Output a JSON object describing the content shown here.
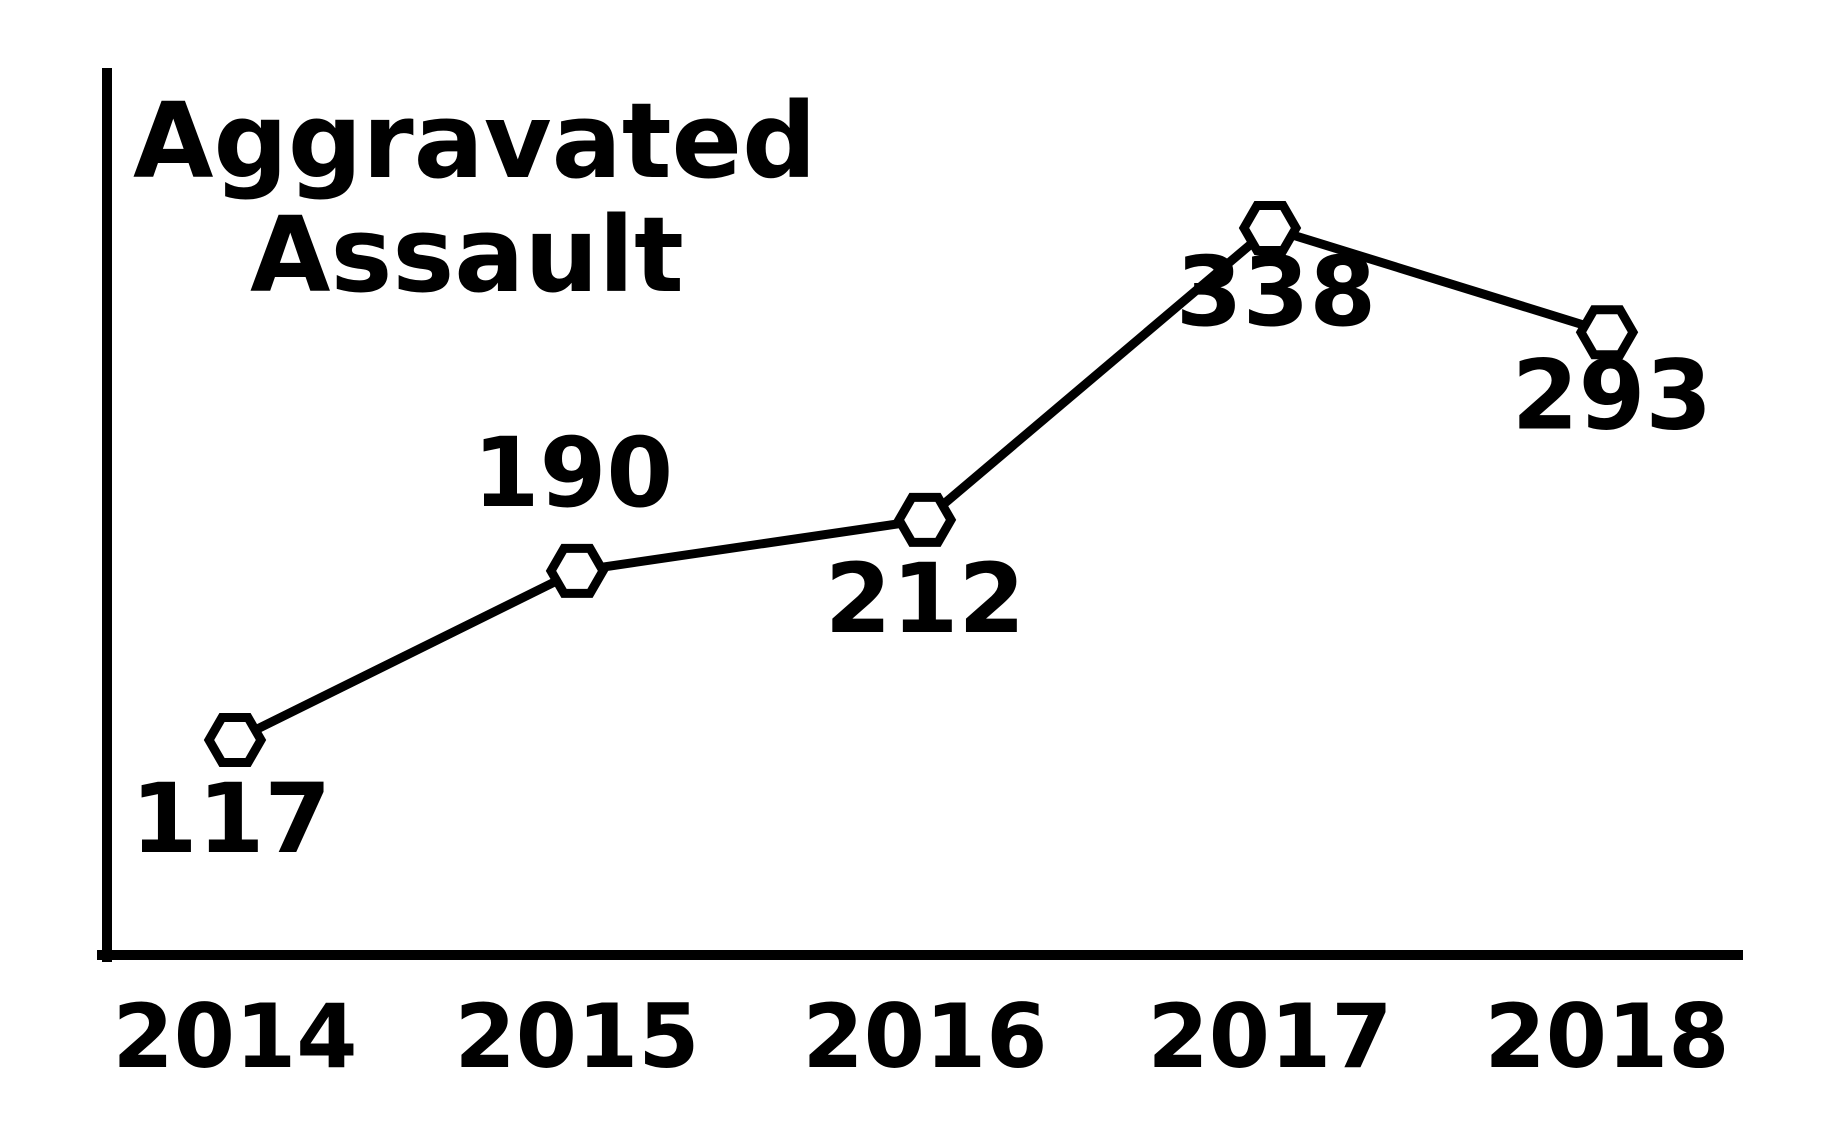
{
  "chart_data": {
    "type": "line",
    "title_lines": [
      "Aggravated",
      "Assault"
    ],
    "categories": [
      "2014",
      "2015",
      "2016",
      "2017",
      "2018"
    ],
    "values": [
      117,
      190,
      212,
      338,
      293
    ],
    "xlabel": "",
    "ylabel": "",
    "ylim": [
      0,
      380
    ],
    "grid": false,
    "legend": "none",
    "marker": "hexagon",
    "colors": {
      "line": "#000000",
      "marker_fill": "#ffffff",
      "text": "#000000",
      "background": "#ffffff"
    }
  }
}
